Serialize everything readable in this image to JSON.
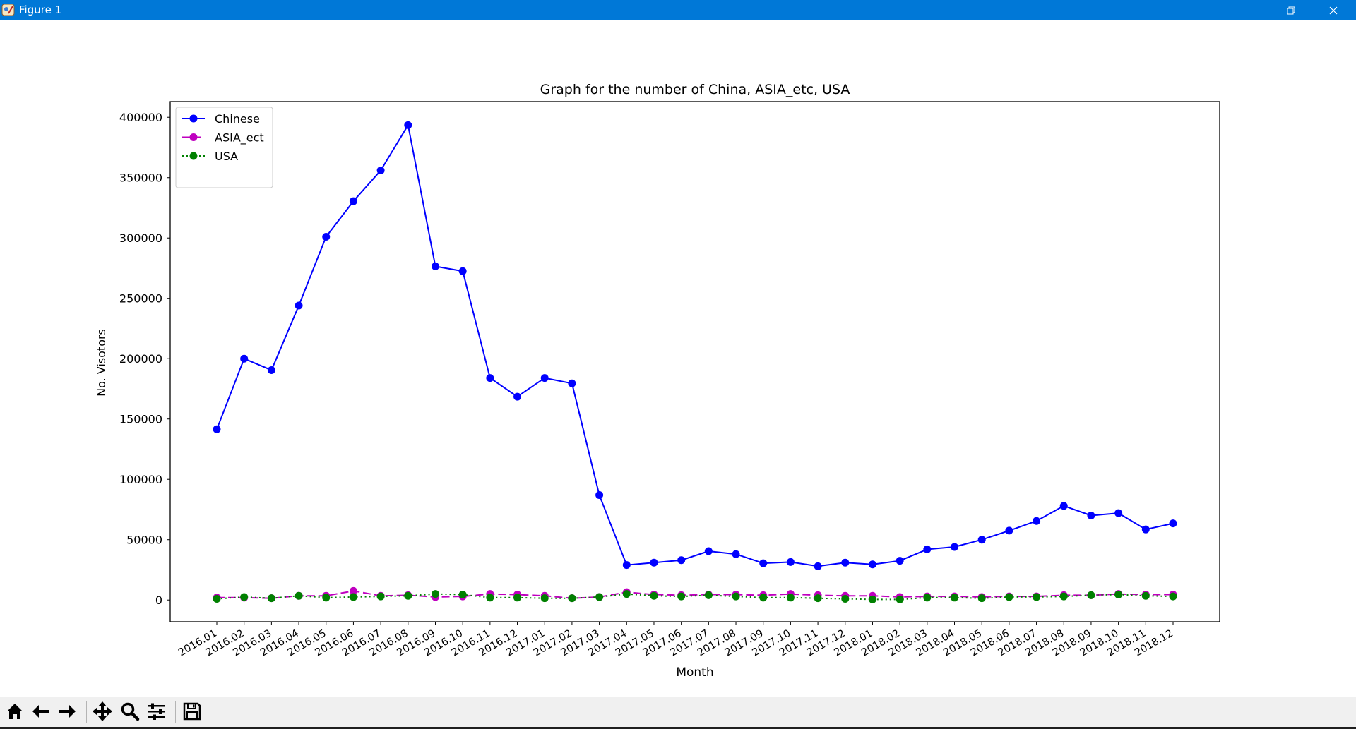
{
  "window": {
    "title": "Figure 1"
  },
  "chart_data": {
    "type": "line",
    "title": "Graph for the number of China, ASIA_etc, USA",
    "xlabel": "Month",
    "ylabel": "No. Visotors",
    "categories": [
      "2016.01",
      "2016.02",
      "2016.03",
      "2016.04",
      "2016.05",
      "2016.06",
      "2016.07",
      "2016.08",
      "2016.09",
      "2016.10",
      "2016.11",
      "2016.12",
      "2017.01",
      "2017.02",
      "2017.03",
      "2017.04",
      "2017.05",
      "2017.06",
      "2017.07",
      "2017.08",
      "2017.09",
      "2017.10",
      "2017.11",
      "2017.12",
      "2018.01",
      "2018.02",
      "2018.03",
      "2018.04",
      "2018.05",
      "2018.06",
      "2018.07",
      "2018.08",
      "2018.09",
      "2018.10",
      "2018.11",
      "2018.12"
    ],
    "ylim": [
      -18000,
      413000
    ],
    "yticks": [
      0,
      50000,
      100000,
      150000,
      200000,
      250000,
      300000,
      350000,
      400000
    ],
    "grid": false,
    "legend_position": "upper-left",
    "series": [
      {
        "name": "Chinese",
        "color": "#0000ff",
        "line_style": "solid",
        "marker": "circle",
        "values": [
          141500,
          200000,
          190500,
          244000,
          301000,
          330500,
          356000,
          393500,
          276500,
          272500,
          184000,
          168500,
          184000,
          179500,
          87000,
          29000,
          31000,
          33000,
          40500,
          38000,
          30500,
          31500,
          28000,
          31000,
          29500,
          32500,
          42000,
          44000,
          50000,
          57500,
          65500,
          78000,
          70000,
          72000,
          58500,
          63500
        ]
      },
      {
        "name": "ASIA_ect",
        "color": "#bf00bf",
        "line_style": "dashed",
        "marker": "circle",
        "values": [
          2000,
          2000,
          1500,
          3500,
          3500,
          7500,
          3500,
          4000,
          2500,
          3000,
          5000,
          4500,
          3500,
          1500,
          2500,
          6500,
          4500,
          4000,
          4500,
          4500,
          4000,
          5000,
          4000,
          3500,
          3500,
          2500,
          3000,
          3000,
          2500,
          3000,
          3000,
          4000,
          4000,
          5000,
          4500,
          4500
        ]
      },
      {
        "name": "USA",
        "color": "#008000",
        "line_style": "dotted",
        "marker": "circle",
        "values": [
          1000,
          2500,
          1500,
          3500,
          2000,
          2500,
          3000,
          3500,
          5000,
          4500,
          2000,
          2000,
          1500,
          1500,
          2500,
          5000,
          3500,
          3000,
          4000,
          3000,
          2000,
          2000,
          1500,
          1000,
          500,
          500,
          2000,
          2000,
          1500,
          2500,
          2500,
          3000,
          4000,
          4500,
          3500,
          3000
        ]
      }
    ]
  },
  "toolbar": {
    "buttons": [
      {
        "name": "home-button",
        "icon": "home-icon"
      },
      {
        "name": "back-button",
        "icon": "arrow-left-icon"
      },
      {
        "name": "forward-button",
        "icon": "arrow-right-icon"
      },
      {
        "name": "pan-button",
        "icon": "move-icon"
      },
      {
        "name": "zoom-button",
        "icon": "magnifier-icon"
      },
      {
        "name": "configure-subplots-button",
        "icon": "sliders-icon"
      },
      {
        "name": "save-button",
        "icon": "floppy-disk-icon"
      }
    ]
  }
}
